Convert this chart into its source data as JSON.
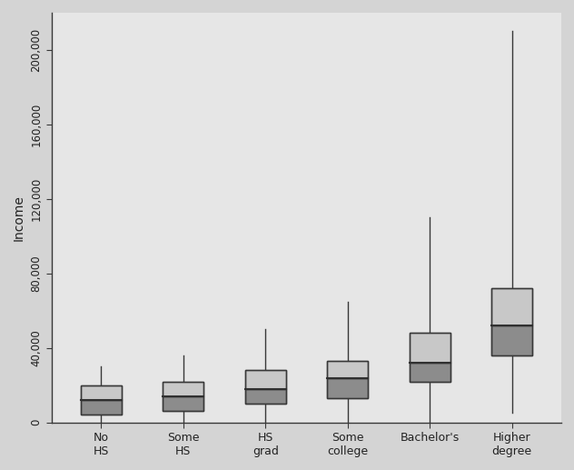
{
  "categories": [
    "No\nHS",
    "Some\nHS",
    "HS\ngrad",
    "Some\ncollege",
    "Bachelor's",
    "Higher\ndegree"
  ],
  "boxes": [
    {
      "whisker_low": 0,
      "q1": 4000,
      "median": 12000,
      "q3": 20000,
      "whisker_high": 30000
    },
    {
      "whisker_low": 0,
      "q1": 6000,
      "median": 14000,
      "q3": 22000,
      "whisker_high": 36000
    },
    {
      "whisker_low": 0,
      "q1": 10000,
      "median": 18000,
      "q3": 28000,
      "whisker_high": 50000
    },
    {
      "whisker_low": 0,
      "q1": 13000,
      "median": 24000,
      "q3": 33000,
      "whisker_high": 65000
    },
    {
      "whisker_low": 0,
      "q1": 22000,
      "median": 32000,
      "q3": 48000,
      "whisker_high": 110000
    },
    {
      "whisker_low": 5000,
      "q1": 36000,
      "median": 52000,
      "q3": 72000,
      "whisker_high": 210000
    }
  ],
  "ylim": [
    0,
    220000
  ],
  "yticks": [
    0,
    40000,
    80000,
    120000,
    160000,
    200000
  ],
  "ytick_labels": [
    "0",
    "40,000",
    "80,000",
    "120,000",
    "160,000",
    "200,000"
  ],
  "ylabel": "Income",
  "box_color_upper": "#c8c8c8",
  "box_color_lower": "#8c8c8c",
  "whisker_color": "#383838",
  "median_color": "#303030",
  "background_color": "#d4d4d4",
  "plot_bg_color": "#e6e6e6",
  "title": ""
}
